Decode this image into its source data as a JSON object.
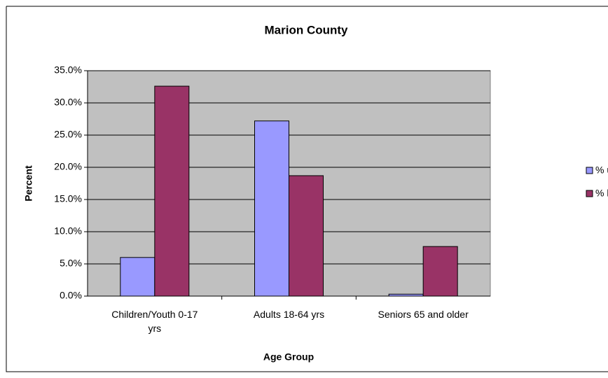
{
  "chart_data": {
    "type": "bar",
    "title": "Marion County",
    "x_label": "Age Group",
    "y_label": "Percent",
    "categories": [
      "Children/Youth 0-17 yrs",
      "Adults 18-64 yrs",
      "Seniors 65 and older"
    ],
    "series": [
      {
        "name": "% uninsured",
        "color": "#9999ff",
        "values": [
          6.0,
          27.2,
          0.3
        ]
      },
      {
        "name": "% living below poverty",
        "color": "#993366",
        "values": [
          32.6,
          18.7,
          7.7
        ]
      }
    ],
    "ylim": [
      0,
      35
    ],
    "yticks": [
      {
        "value": 0,
        "label": "0.0%"
      },
      {
        "value": 5,
        "label": "5.0%"
      },
      {
        "value": 10,
        "label": "10.0%"
      },
      {
        "value": 15,
        "label": "15.0%"
      },
      {
        "value": 20,
        "label": "20.0%"
      },
      {
        "value": 25,
        "label": "25.0%"
      },
      {
        "value": 30,
        "label": "30.0%"
      },
      {
        "value": 35,
        "label": "35.0%"
      }
    ],
    "grid": true,
    "legend": "right"
  }
}
